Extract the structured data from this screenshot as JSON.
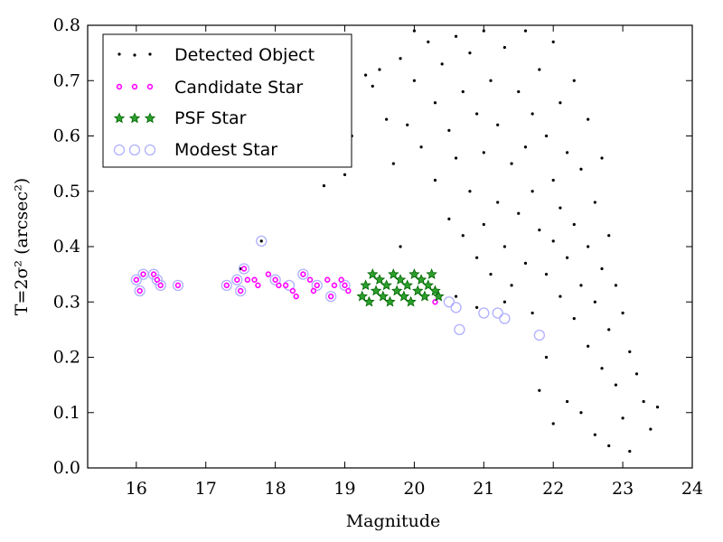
{
  "chart_data": {
    "type": "scatter",
    "xlabel": "Magnitude",
    "ylabel": "T=2σ² (arcsec²)",
    "xlim": [
      15.3,
      24
    ],
    "ylim": [
      0,
      0.8
    ],
    "x_ticks": [
      "16",
      "17",
      "18",
      "19",
      "20",
      "21",
      "22",
      "23",
      "24"
    ],
    "y_ticks": [
      "0.0",
      "0.1",
      "0.2",
      "0.3",
      "0.4",
      "0.5",
      "0.6",
      "0.7",
      "0.8"
    ],
    "grid": false,
    "legend_position": "top-left",
    "legend": [
      "Detected Object",
      "Candidate Star",
      "PSF Star",
      "Modest Star"
    ],
    "colors": {
      "detected": "#000000",
      "candidate": "#ff00ff",
      "psf_fill": "#2ca02c",
      "psf_edge": "#006400",
      "modest": "#b0b0ff"
    },
    "series": [
      {
        "name": "Detected Object",
        "points": [
          [
            19.0,
            0.53
          ],
          [
            18.7,
            0.51
          ],
          [
            19.3,
            0.71
          ],
          [
            19.4,
            0.69
          ],
          [
            19.1,
            0.6
          ],
          [
            19.5,
            0.72
          ],
          [
            19.6,
            0.63
          ],
          [
            19.7,
            0.55
          ],
          [
            19.8,
            0.74
          ],
          [
            19.9,
            0.62
          ],
          [
            20.0,
            0.79
          ],
          [
            20.0,
            0.7
          ],
          [
            20.1,
            0.58
          ],
          [
            20.2,
            0.77
          ],
          [
            20.3,
            0.66
          ],
          [
            20.3,
            0.52
          ],
          [
            20.4,
            0.73
          ],
          [
            20.5,
            0.61
          ],
          [
            20.5,
            0.45
          ],
          [
            20.6,
            0.78
          ],
          [
            20.6,
            0.56
          ],
          [
            20.7,
            0.68
          ],
          [
            20.7,
            0.42
          ],
          [
            20.8,
            0.75
          ],
          [
            20.8,
            0.5
          ],
          [
            20.9,
            0.64
          ],
          [
            20.9,
            0.38
          ],
          [
            21.0,
            0.79
          ],
          [
            21.0,
            0.57
          ],
          [
            21.0,
            0.44
          ],
          [
            21.1,
            0.7
          ],
          [
            21.1,
            0.35
          ],
          [
            21.2,
            0.62
          ],
          [
            21.2,
            0.48
          ],
          [
            21.3,
            0.76
          ],
          [
            21.3,
            0.4
          ],
          [
            21.4,
            0.55
          ],
          [
            21.4,
            0.33
          ],
          [
            21.5,
            0.68
          ],
          [
            21.5,
            0.46
          ],
          [
            21.6,
            0.79
          ],
          [
            21.6,
            0.58
          ],
          [
            21.6,
            0.37
          ],
          [
            21.7,
            0.64
          ],
          [
            21.7,
            0.5
          ],
          [
            21.7,
            0.28
          ],
          [
            21.8,
            0.72
          ],
          [
            21.8,
            0.43
          ],
          [
            21.8,
            0.14
          ],
          [
            21.9,
            0.6
          ],
          [
            21.9,
            0.35
          ],
          [
            21.9,
            0.2
          ],
          [
            22.0,
            0.77
          ],
          [
            22.0,
            0.52
          ],
          [
            22.0,
            0.41
          ],
          [
            22.0,
            0.08
          ],
          [
            22.1,
            0.66
          ],
          [
            22.1,
            0.47
          ],
          [
            22.1,
            0.31
          ],
          [
            22.2,
            0.57
          ],
          [
            22.2,
            0.38
          ],
          [
            22.2,
            0.12
          ],
          [
            22.3,
            0.7
          ],
          [
            22.3,
            0.44
          ],
          [
            22.3,
            0.27
          ],
          [
            22.4,
            0.54
          ],
          [
            22.4,
            0.33
          ],
          [
            22.4,
            0.1
          ],
          [
            22.5,
            0.63
          ],
          [
            22.5,
            0.4
          ],
          [
            22.5,
            0.22
          ],
          [
            22.6,
            0.48
          ],
          [
            22.6,
            0.3
          ],
          [
            22.6,
            0.06
          ],
          [
            22.7,
            0.56
          ],
          [
            22.7,
            0.36
          ],
          [
            22.7,
            0.18
          ],
          [
            22.8,
            0.42
          ],
          [
            22.8,
            0.25
          ],
          [
            22.8,
            0.04
          ],
          [
            22.9,
            0.33
          ],
          [
            22.9,
            0.15
          ],
          [
            23.0,
            0.28
          ],
          [
            23.0,
            0.09
          ],
          [
            23.1,
            0.21
          ],
          [
            23.1,
            0.03
          ],
          [
            23.2,
            0.17
          ],
          [
            23.3,
            0.12
          ],
          [
            23.4,
            0.07
          ],
          [
            23.5,
            0.11
          ],
          [
            17.5,
            0.36
          ],
          [
            17.8,
            0.41
          ],
          [
            19.8,
            0.4
          ],
          [
            20.6,
            0.31
          ],
          [
            20.9,
            0.29
          ],
          [
            21.3,
            0.3
          ]
        ]
      },
      {
        "name": "Candidate Star",
        "points": [
          [
            16.0,
            0.34
          ],
          [
            16.05,
            0.32
          ],
          [
            16.1,
            0.35
          ],
          [
            16.25,
            0.35
          ],
          [
            16.3,
            0.34
          ],
          [
            16.35,
            0.33
          ],
          [
            16.6,
            0.33
          ],
          [
            17.3,
            0.33
          ],
          [
            17.45,
            0.34
          ],
          [
            17.5,
            0.32
          ],
          [
            17.55,
            0.36
          ],
          [
            17.6,
            0.34
          ],
          [
            17.7,
            0.34
          ],
          [
            17.75,
            0.33
          ],
          [
            17.9,
            0.35
          ],
          [
            18.0,
            0.34
          ],
          [
            18.05,
            0.33
          ],
          [
            18.15,
            0.33
          ],
          [
            18.25,
            0.32
          ],
          [
            18.3,
            0.31
          ],
          [
            18.4,
            0.35
          ],
          [
            18.5,
            0.34
          ],
          [
            18.55,
            0.32
          ],
          [
            18.6,
            0.33
          ],
          [
            18.75,
            0.34
          ],
          [
            18.8,
            0.31
          ],
          [
            18.85,
            0.33
          ],
          [
            18.95,
            0.34
          ],
          [
            19.0,
            0.33
          ],
          [
            19.05,
            0.32
          ],
          [
            20.0,
            0.35
          ],
          [
            20.3,
            0.3
          ]
        ]
      },
      {
        "name": "PSF Star",
        "points": [
          [
            19.25,
            0.31
          ],
          [
            19.3,
            0.33
          ],
          [
            19.35,
            0.3
          ],
          [
            19.4,
            0.35
          ],
          [
            19.45,
            0.32
          ],
          [
            19.5,
            0.34
          ],
          [
            19.55,
            0.31
          ],
          [
            19.6,
            0.33
          ],
          [
            19.65,
            0.3
          ],
          [
            19.7,
            0.35
          ],
          [
            19.75,
            0.32
          ],
          [
            19.8,
            0.34
          ],
          [
            19.85,
            0.31
          ],
          [
            19.9,
            0.33
          ],
          [
            19.95,
            0.3
          ],
          [
            20.0,
            0.35
          ],
          [
            20.05,
            0.32
          ],
          [
            20.1,
            0.34
          ],
          [
            20.15,
            0.31
          ],
          [
            20.2,
            0.33
          ],
          [
            20.25,
            0.35
          ],
          [
            20.3,
            0.32
          ],
          [
            20.35,
            0.31
          ]
        ]
      },
      {
        "name": "Modest Star",
        "points": [
          [
            16.0,
            0.34
          ],
          [
            16.05,
            0.32
          ],
          [
            16.1,
            0.35
          ],
          [
            16.25,
            0.35
          ],
          [
            16.3,
            0.34
          ],
          [
            16.35,
            0.33
          ],
          [
            16.6,
            0.33
          ],
          [
            17.3,
            0.33
          ],
          [
            17.45,
            0.34
          ],
          [
            17.5,
            0.32
          ],
          [
            17.55,
            0.36
          ],
          [
            17.8,
            0.41
          ],
          [
            18.0,
            0.34
          ],
          [
            18.2,
            0.33
          ],
          [
            18.4,
            0.35
          ],
          [
            18.6,
            0.33
          ],
          [
            18.8,
            0.31
          ],
          [
            19.0,
            0.33
          ],
          [
            20.5,
            0.3
          ],
          [
            20.6,
            0.29
          ],
          [
            20.65,
            0.25
          ],
          [
            21.0,
            0.28
          ],
          [
            21.2,
            0.28
          ],
          [
            21.3,
            0.27
          ],
          [
            21.8,
            0.24
          ]
        ]
      }
    ]
  }
}
